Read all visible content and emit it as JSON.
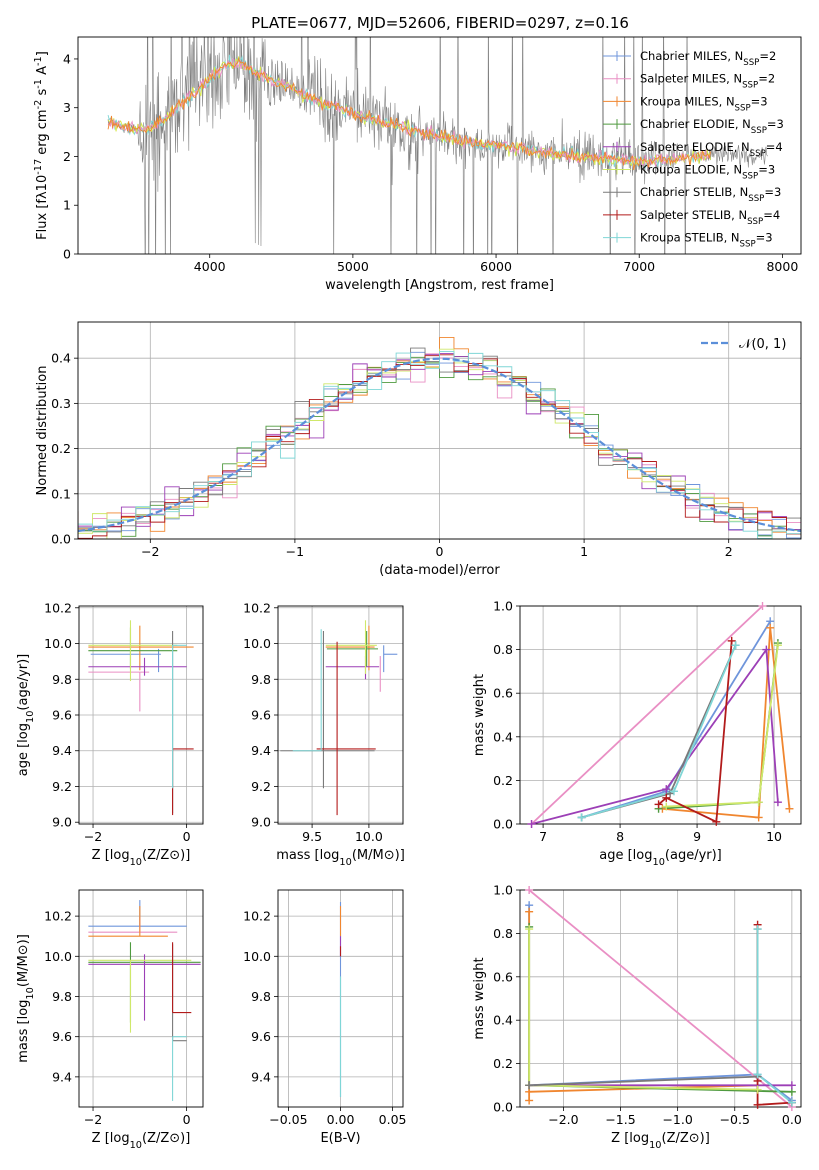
{
  "suptitle": "PLATE=0677, MJD=52606, FIBERID=0297, z=0.16",
  "series_names": [
    "Chabrier MILES, N$_{SSP}$=2",
    "Salpeter MILES, N$_{SSP}$=2",
    "Kroupa MILES, N$_{SSP}$=3",
    "Chabrier ELODIE, N$_{SSP}$=3",
    "Salpeter ELODIE, N$_{SSP}$=4",
    "Kroupa ELODIE, N$_{SSP}$=3",
    "Chabrier STELIB, N$_{SSP}$=3",
    "Salpeter STELIB, N$_{SSP}$=4",
    "Kroupa STELIB, N$_{SSP}$=3"
  ],
  "series_colors": [
    "#6f95db",
    "#e98fc4",
    "#f0862f",
    "#4f9a3f",
    "#9c3fb6",
    "#cfe86a",
    "#7a7a7a",
    "#b21b1b",
    "#7fd6d6"
  ],
  "chart_data": [
    {
      "id": "spectrum",
      "type": "line",
      "xlabel": "wavelength [Angstrom, rest frame]",
      "ylabel": "Flux [f$_\\lambda$10$^{-17}$ erg cm$^{-2}$ s$^{-1}$ A$^{-1}$]",
      "xlim": [
        3080,
        8130
      ],
      "ylim": [
        0,
        4.45
      ],
      "xticks": [
        4000,
        5000,
        6000,
        7000,
        8000
      ],
      "yticks": [
        0,
        1,
        2,
        3,
        4
      ],
      "grid": false,
      "legend": "upper right",
      "data_color": "#808080",
      "continuum": {
        "x": [
          3290,
          3400,
          3500,
          3600,
          3700,
          3800,
          3900,
          4000,
          4100,
          4200,
          4300,
          4400,
          4500,
          4600,
          4700,
          4800,
          4900,
          5000,
          5200,
          5400,
          5600,
          5800,
          6000,
          6200,
          6400,
          6600,
          6800,
          7000,
          7200,
          7400,
          7600,
          7800,
          7900
        ],
        "y": [
          2.72,
          2.62,
          2.55,
          2.6,
          2.8,
          3.1,
          3.3,
          3.6,
          3.85,
          3.95,
          3.75,
          3.6,
          3.5,
          3.35,
          3.2,
          3.08,
          3.0,
          2.88,
          2.72,
          2.55,
          2.42,
          2.32,
          2.22,
          2.15,
          2.05,
          2.0,
          1.95,
          1.9,
          1.95,
          2.0,
          2.05,
          2.05,
          2.0
        ]
      },
      "model_colors": [
        "#7fd6d6",
        "#d6e84a",
        "#e98fc4",
        "#f0862f"
      ],
      "model_xrange": [
        3290,
        7500
      ]
    },
    {
      "id": "residuals",
      "type": "histogram",
      "xlabel": "(data-model)/error",
      "ylabel": "Normed distribution",
      "xlim": [
        -2.5,
        2.5
      ],
      "ylim": [
        0,
        0.48
      ],
      "xticks": [
        -2,
        -1,
        0,
        1,
        2
      ],
      "yticks": [
        0,
        0.1,
        0.2,
        0.3,
        0.4
      ],
      "grid": true,
      "legend": "upper right",
      "legend_label": "$\\mathcal{N}(0, 1)$",
      "normal_color": "#5b8fd9",
      "bin_width": 0.1
    },
    {
      "id": "age_vs_Z",
      "type": "errorbar",
      "xlabel": "Z [log$_{10}$(Z/Z$_\\odot$)]",
      "ylabel": "age  [log$_{10}$(age/yr)]",
      "xlim": [
        -2.3,
        0.35
      ],
      "ylim": [
        8.99,
        10.21
      ],
      "xticks": [
        -2,
        0
      ],
      "yticks": [
        9.0,
        9.2,
        9.4,
        9.6,
        9.8,
        10.0,
        10.2
      ],
      "grid": true,
      "points": [
        {
          "s": 0,
          "x": -0.6,
          "y": 9.94,
          "xerr": [
            1.45,
            0.05
          ],
          "yerr": [
            0.1,
            0.03
          ]
        },
        {
          "s": 1,
          "x": -1.0,
          "y": 9.84,
          "xerr": [
            1.1,
            0.2
          ],
          "yerr": [
            0.22,
            0.0
          ]
        },
        {
          "s": 2,
          "x": -1.0,
          "y": 9.98,
          "xerr": [
            1.1,
            1.15
          ],
          "yerr": [
            0.13,
            0.12
          ]
        },
        {
          "s": 3,
          "x": -1.2,
          "y": 9.96,
          "xerr": [
            0.9,
            1.0
          ],
          "yerr": [
            0.1,
            0.13
          ]
        },
        {
          "s": 4,
          "x": -0.9,
          "y": 9.87,
          "xerr": [
            1.2,
            0.9
          ],
          "yerr": [
            0.05,
            0.05
          ]
        },
        {
          "s": 5,
          "x": -1.2,
          "y": 9.99,
          "xerr": [
            0.9,
            1.0
          ],
          "yerr": [
            0.2,
            0.14
          ]
        },
        {
          "s": 6,
          "x": -0.3,
          "y": 9.75,
          "xerr": [
            0.0,
            0.0
          ],
          "yerr": [
            0.7,
            0.32
          ]
        },
        {
          "s": 7,
          "x": -0.3,
          "y": 9.41,
          "xerr": [
            0.0,
            0.45
          ],
          "yerr": [
            0.37,
            0.0
          ]
        },
        {
          "s": 8,
          "x": -0.3,
          "y": 9.99,
          "xerr": [
            0.0,
            0.3
          ],
          "yerr": [
            0.8,
            0.0
          ]
        }
      ]
    },
    {
      "id": "age_vs_mass",
      "type": "errorbar",
      "xlabel": "mass [log$_{10}$(M/M$_\\odot$)]",
      "ylabel": "",
      "xlim": [
        9.2,
        10.3
      ],
      "ylim": [
        8.99,
        10.21
      ],
      "xticks": [
        9.5,
        10.0
      ],
      "yticks": [
        9.0,
        9.2,
        9.4,
        9.6,
        9.8,
        10.0,
        10.2
      ],
      "grid": true,
      "points": [
        {
          "s": 0,
          "x": 10.13,
          "y": 9.94,
          "xerr": [
            0.0,
            0.12
          ],
          "yerr": [
            0.1,
            0.05
          ]
        },
        {
          "s": 1,
          "x": 10.1,
          "y": 9.93,
          "xerr": [
            0.0,
            0.0
          ],
          "yerr": [
            0.2,
            0.0
          ]
        },
        {
          "s": 2,
          "x": 10.0,
          "y": 9.98,
          "xerr": [
            0.38,
            0.05
          ],
          "yerr": [
            0.13,
            0.12
          ]
        },
        {
          "s": 3,
          "x": 9.98,
          "y": 9.97,
          "xerr": [
            0.35,
            0.1
          ],
          "yerr": [
            0.1,
            0.1
          ]
        },
        {
          "s": 4,
          "x": 9.97,
          "y": 9.87,
          "xerr": [
            0.35,
            0.12
          ],
          "yerr": [
            0.07,
            0.06
          ]
        },
        {
          "s": 5,
          "x": 9.97,
          "y": 9.99,
          "xerr": [
            0.35,
            0.1
          ],
          "yerr": [
            0.16,
            0.14
          ]
        },
        {
          "s": 6,
          "x": 9.6,
          "y": 9.4,
          "xerr": [
            0.38,
            0.45
          ],
          "yerr": [
            0.21,
            0.67
          ]
        },
        {
          "s": 7,
          "x": 9.72,
          "y": 9.41,
          "xerr": [
            0.18,
            0.34
          ],
          "yerr": [
            0.37,
            0.6
          ]
        },
        {
          "s": 8,
          "x": 9.58,
          "y": 9.4,
          "xerr": [
            0.25,
            0.0
          ],
          "yerr": [
            0.0,
            0.68
          ]
        }
      ]
    },
    {
      "id": "weight_vs_age",
      "type": "line",
      "xlabel": "age  [log$_{10}$(age/yr)]",
      "ylabel": "mass weight",
      "xlim": [
        6.7,
        10.35
      ],
      "ylim": [
        0,
        1.0
      ],
      "xticks": [
        7,
        8,
        9,
        10
      ],
      "yticks": [
        0.0,
        0.2,
        0.4,
        0.6,
        0.8,
        1.0
      ],
      "grid": true,
      "series": [
        {
          "s": 0,
          "x": [
            7.5,
            8.6,
            9.95
          ],
          "y": [
            0.03,
            0.15,
            0.93
          ]
        },
        {
          "s": 1,
          "x": [
            6.85,
            9.85
          ],
          "y": [
            0.0,
            1.0
          ]
        },
        {
          "s": 2,
          "x": [
            8.55,
            9.8,
            9.95,
            10.2
          ],
          "y": [
            0.07,
            0.03,
            0.9,
            0.07
          ]
        },
        {
          "s": 3,
          "x": [
            8.5,
            9.8,
            10.05
          ],
          "y": [
            0.07,
            0.1,
            0.83
          ]
        },
        {
          "s": 4,
          "x": [
            6.85,
            8.6,
            9.9,
            10.05
          ],
          "y": [
            0.0,
            0.16,
            0.8,
            0.1
          ]
        },
        {
          "s": 5,
          "x": [
            8.6,
            9.8,
            10.05
          ],
          "y": [
            0.08,
            0.1,
            0.82
          ]
        },
        {
          "s": 6,
          "x": [
            7.5,
            8.65,
            9.5
          ],
          "y": [
            0.03,
            0.14,
            0.82
          ]
        },
        {
          "s": 7,
          "x": [
            8.5,
            8.6,
            9.25,
            9.45
          ],
          "y": [
            0.09,
            0.12,
            0.01,
            0.84
          ]
        },
        {
          "s": 8,
          "x": [
            7.5,
            8.7,
            9.5
          ],
          "y": [
            0.03,
            0.15,
            0.82
          ]
        }
      ]
    },
    {
      "id": "mass_vs_Z",
      "type": "errorbar",
      "xlabel": "Z [log$_{10}$(Z/Z$_\\odot$)]",
      "ylabel": "mass [log$_{10}$(M/M$_\\odot$)]",
      "xlim": [
        -2.3,
        0.35
      ],
      "ylim": [
        9.25,
        10.33
      ],
      "xticks": [
        -2,
        0
      ],
      "yticks": [
        9.4,
        9.6,
        9.8,
        10.0,
        10.2
      ],
      "grid": true,
      "points": [
        {
          "s": 0,
          "x": -1.0,
          "y": 10.15,
          "xerr": [
            1.1,
            1.0
          ],
          "yerr": [
            0.0,
            0.13
          ]
        },
        {
          "s": 1,
          "x": -1.0,
          "y": 10.12,
          "xerr": [
            1.1,
            0.8
          ],
          "yerr": [
            0.0,
            0.08
          ]
        },
        {
          "s": 2,
          "x": -1.0,
          "y": 10.1,
          "xerr": [
            1.1,
            0.6
          ],
          "yerr": [
            0.0,
            0.15
          ]
        },
        {
          "s": 3,
          "x": -1.2,
          "y": 9.97,
          "xerr": [
            0.9,
            1.5
          ],
          "yerr": [
            0.3,
            0.1
          ]
        },
        {
          "s": 4,
          "x": -0.9,
          "y": 9.96,
          "xerr": [
            1.2,
            1.2
          ],
          "yerr": [
            0.28,
            0.05
          ]
        },
        {
          "s": 5,
          "x": -1.2,
          "y": 9.98,
          "xerr": [
            0.9,
            1.3
          ],
          "yerr": [
            0.36,
            0.0
          ]
        },
        {
          "s": 6,
          "x": -0.3,
          "y": 9.58,
          "xerr": [
            0.0,
            0.3
          ],
          "yerr": [
            0.0,
            0.48
          ]
        },
        {
          "s": 7,
          "x": -0.3,
          "y": 9.72,
          "xerr": [
            0.0,
            0.4
          ],
          "yerr": [
            0.0,
            0.35
          ]
        },
        {
          "s": 8,
          "x": -0.3,
          "y": 9.6,
          "xerr": [
            0.0,
            0.3
          ],
          "yerr": [
            0.32,
            0.0
          ]
        }
      ]
    },
    {
      "id": "mass_vs_EBV",
      "type": "errorbar",
      "xlabel": "E(B-V)",
      "ylabel": "",
      "xlim": [
        -0.06,
        0.06
      ],
      "ylim": [
        9.25,
        10.33
      ],
      "xticks": [
        -0.05,
        0.0,
        0.05
      ],
      "yticks": [
        9.4,
        9.6,
        9.8,
        10.0,
        10.2
      ],
      "grid": true,
      "points": [
        {
          "s": 0,
          "x": 0.0,
          "y": 10.0,
          "xerr": [
            0,
            0
          ],
          "yerr": [
            0.7,
            0.27
          ]
        },
        {
          "s": 2,
          "x": 0.0,
          "y": 10.1,
          "xerr": [
            0,
            0
          ],
          "yerr": [
            0.0,
            0.15
          ]
        },
        {
          "s": 4,
          "x": 0.0,
          "y": 10.0,
          "xerr": [
            0,
            0
          ],
          "yerr": [
            0.0,
            0.1
          ]
        },
        {
          "s": 7,
          "x": 0.0,
          "y": 10.0,
          "xerr": [
            0,
            0
          ],
          "yerr": [
            0.0,
            0.05
          ]
        },
        {
          "s": 8,
          "x": 0.0,
          "y": 9.8,
          "xerr": [
            0,
            0
          ],
          "yerr": [
            0.5,
            0.1
          ]
        }
      ]
    },
    {
      "id": "weight_vs_Z",
      "type": "line",
      "xlabel": "Z [log$_{10}$(Z/Z$_\\odot$)]",
      "ylabel": "mass weight",
      "xlim": [
        -2.38,
        0.08
      ],
      "ylim": [
        0,
        1.0
      ],
      "xticks": [
        -2.0,
        -1.5,
        -1.0,
        -0.5,
        0.0
      ],
      "yticks": [
        0.0,
        0.2,
        0.4,
        0.6,
        0.8,
        1.0
      ],
      "grid": true,
      "series": [
        {
          "s": 0,
          "x": [
            -2.3,
            -2.3,
            -0.3,
            0.0
          ],
          "y": [
            0.93,
            0.1,
            0.15,
            0.03
          ]
        },
        {
          "s": 1,
          "x": [
            -2.3,
            0.0
          ],
          "y": [
            1.0,
            0.0
          ]
        },
        {
          "s": 2,
          "x": [
            -2.3,
            -2.3,
            -2.3,
            -0.3
          ],
          "y": [
            0.9,
            0.03,
            0.07,
            0.1
          ]
        },
        {
          "s": 3,
          "x": [
            -2.3,
            -2.3,
            0.0
          ],
          "y": [
            0.83,
            0.1,
            0.07
          ]
        },
        {
          "s": 4,
          "x": [
            -2.3,
            -0.3,
            0.0
          ],
          "y": [
            0.1,
            0.1,
            0.1
          ]
        },
        {
          "s": 5,
          "x": [
            -2.3,
            -2.3,
            -0.3
          ],
          "y": [
            0.82,
            0.1,
            0.08
          ]
        },
        {
          "s": 6,
          "x": [
            -2.3,
            -0.3,
            -0.3
          ],
          "y": [
            0.1,
            0.14,
            0.82
          ]
        },
        {
          "s": 7,
          "x": [
            -0.3,
            -0.3,
            -0.3,
            0.0
          ],
          "y": [
            0.84,
            0.12,
            0.01,
            0.02
          ]
        },
        {
          "s": 8,
          "x": [
            -0.3,
            -0.3,
            0.0
          ],
          "y": [
            0.82,
            0.15,
            0.02
          ]
        }
      ]
    }
  ]
}
